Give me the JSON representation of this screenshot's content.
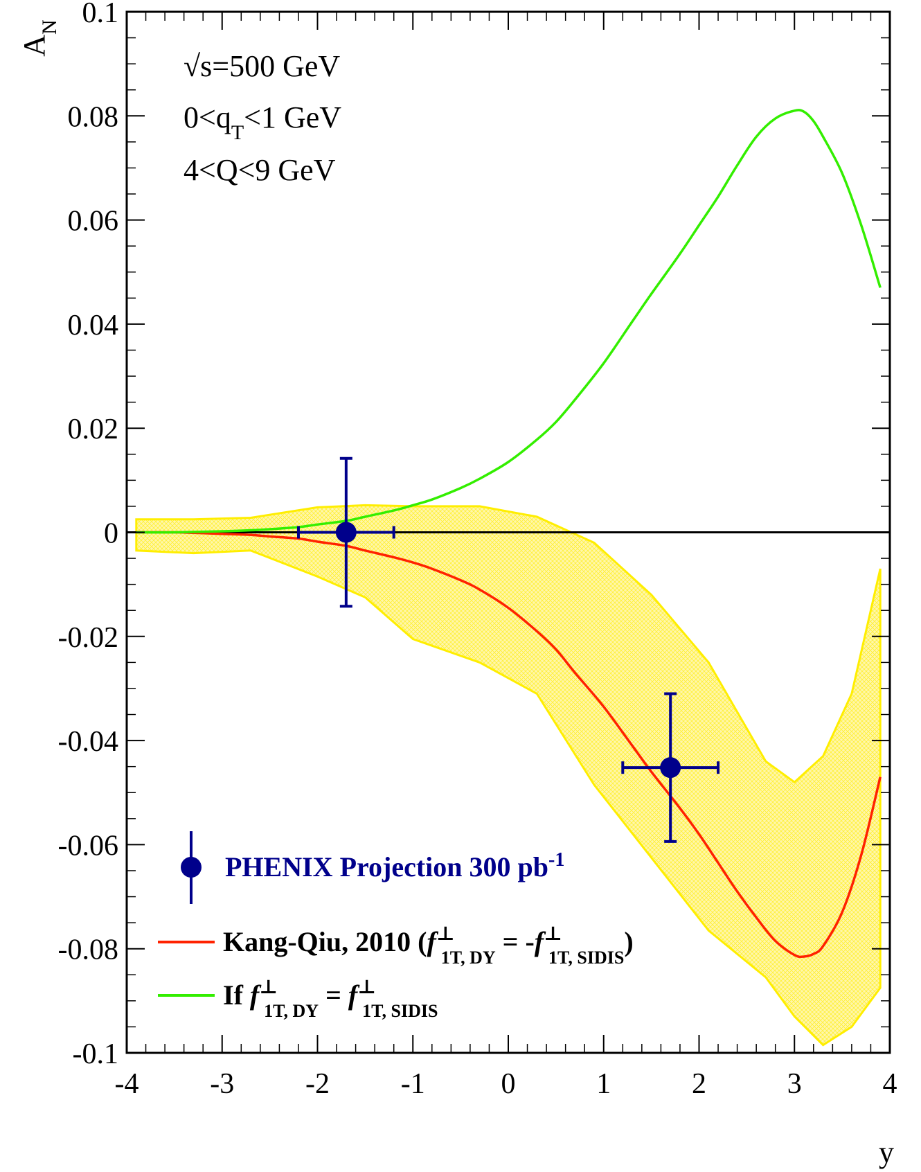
{
  "chart_data": {
    "type": "line",
    "xlabel": "y",
    "ylabel_main": "A",
    "ylabel_sub": "N",
    "xlim": [
      -4,
      4
    ],
    "ylim": [
      -0.1,
      0.1
    ],
    "x_ticks": [
      -4,
      -3,
      -2,
      -1,
      0,
      1,
      2,
      3,
      4
    ],
    "x_tick_labels": [
      "-4",
      "-3",
      "-2",
      "-1",
      "0",
      "1",
      "2",
      "3",
      "4"
    ],
    "y_ticks": [
      -0.1,
      -0.08,
      -0.06,
      -0.04,
      -0.02,
      0,
      0.02,
      0.04,
      0.06,
      0.08,
      0.1
    ],
    "y_tick_labels": [
      "-0.1",
      "-0.08",
      "-0.06",
      "-0.04",
      "-0.02",
      "0",
      "0.02",
      "0.04",
      "0.06",
      "0.08",
      "0.1"
    ],
    "annotations": {
      "energy": "√s=500 GeV",
      "qt_pre": "0<q",
      "qt_sub": "T",
      "qt_post": "<1 GeV",
      "q_range": "4<Q<9 GeV"
    },
    "legend": {
      "phenix_text": "PHENIX Projection 300 pb",
      "phenix_sup": "-1",
      "kq_pre": "Kang-Qiu, 2010 (",
      "kq_f1": "f",
      "kq_sup1": "⊥",
      "kq_sub1": "1T, DY",
      "kq_mid": " = -",
      "kq_f2": "f",
      "kq_sup2": "⊥",
      "kq_sub2": "1T, SIDIS",
      "kq_post": ")",
      "if_pre": "If ",
      "if_f1": "f",
      "if_sup1": "⊥",
      "if_sub1": "1T, DY",
      "if_mid": " = ",
      "if_f2": "f",
      "if_sup2": "⊥",
      "if_sub2": "1T, SIDIS"
    },
    "colors": {
      "kang_qiu": "#ff2200",
      "if_curve": "#33ee00",
      "band_fill": "#ffee66",
      "band_edge": "#ffee00",
      "points": "#00008b",
      "zero_line": "#000000"
    },
    "series": [
      {
        "id": "kang-qiu",
        "x": [
          -3.9,
          -3.5,
          -3.0,
          -2.7,
          -2.5,
          -2.2,
          -2.0,
          -1.7,
          -1.5,
          -1.2,
          -1.0,
          -0.8,
          -0.5,
          -0.3,
          0.0,
          0.3,
          0.5,
          0.7,
          1.0,
          1.3,
          1.5,
          1.8,
          2.0,
          2.2,
          2.4,
          2.6,
          2.8,
          3.0,
          3.1,
          3.2,
          3.3,
          3.5,
          3.7,
          3.9
        ],
        "y": [
          0.0,
          0.0,
          -0.0003,
          -0.0005,
          -0.0008,
          -0.0012,
          -0.0018,
          -0.0026,
          -0.0035,
          -0.0048,
          -0.0058,
          -0.007,
          -0.0092,
          -0.011,
          -0.0145,
          -0.019,
          -0.0225,
          -0.027,
          -0.0335,
          -0.041,
          -0.046,
          -0.053,
          -0.058,
          -0.0635,
          -0.069,
          -0.074,
          -0.0785,
          -0.0812,
          -0.0815,
          -0.081,
          -0.0795,
          -0.073,
          -0.062,
          -0.047
        ]
      },
      {
        "id": "if-equal",
        "x": [
          -3.9,
          -3.5,
          -3.0,
          -2.7,
          -2.5,
          -2.2,
          -2.0,
          -1.7,
          -1.5,
          -1.2,
          -1.0,
          -0.8,
          -0.5,
          -0.3,
          0.0,
          0.3,
          0.5,
          0.7,
          1.0,
          1.3,
          1.5,
          1.8,
          2.0,
          2.2,
          2.4,
          2.6,
          2.8,
          3.0,
          3.1,
          3.2,
          3.3,
          3.5,
          3.7,
          3.9
        ],
        "y": [
          0.0,
          0.0,
          0.0002,
          0.0004,
          0.0006,
          0.001,
          0.0015,
          0.0022,
          0.003,
          0.0042,
          0.0052,
          0.0063,
          0.0085,
          0.0103,
          0.0135,
          0.0178,
          0.0212,
          0.0255,
          0.0325,
          0.0405,
          0.0458,
          0.0535,
          0.059,
          0.0645,
          0.0705,
          0.076,
          0.0795,
          0.081,
          0.0808,
          0.079,
          0.076,
          0.069,
          0.059,
          0.047
        ]
      }
    ],
    "band": {
      "x": [
        -3.9,
        -3.3,
        -2.7,
        -2.0,
        -1.5,
        -1.0,
        -0.3,
        0.3,
        0.9,
        1.5,
        2.1,
        2.7,
        3.0,
        3.3,
        3.6,
        3.9
      ],
      "upper": [
        0.0025,
        0.0025,
        0.0028,
        0.0048,
        0.0052,
        0.005,
        0.005,
        0.003,
        -0.002,
        -0.012,
        -0.025,
        -0.044,
        -0.048,
        -0.043,
        -0.031,
        -0.007
      ],
      "lower": [
        -0.0035,
        -0.004,
        -0.0035,
        -0.0085,
        -0.0125,
        -0.0205,
        -0.025,
        -0.031,
        -0.0485,
        -0.0625,
        -0.0765,
        -0.0855,
        -0.093,
        -0.0985,
        -0.095,
        -0.0875
      ]
    },
    "points": [
      {
        "x": -1.7,
        "y": 0.0,
        "xerr": 0.5,
        "yerr": 0.0142
      },
      {
        "x": 1.7,
        "y": -0.0452,
        "xerr": 0.5,
        "yerr": 0.0142
      }
    ],
    "grid": false
  }
}
